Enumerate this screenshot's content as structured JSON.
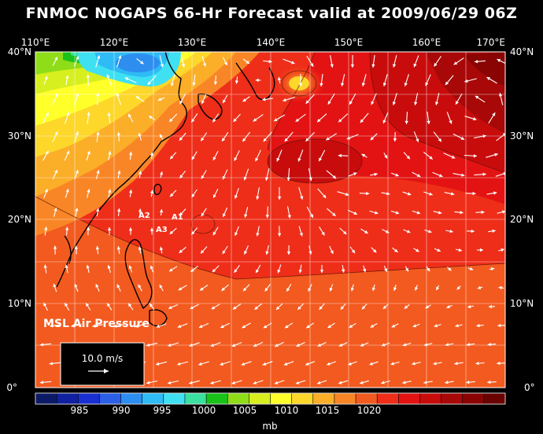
{
  "title": "FNMOC NOGAPS 66-Hr Forecast valid at 2009/06/29 06Z",
  "lon_labels": [
    "110°E",
    "120°E",
    "130°E",
    "140°E",
    "150°E",
    "160°E",
    "170°E"
  ],
  "lat_labels": [
    "40°N",
    "30°N",
    "20°N",
    "10°N",
    "0°"
  ],
  "field_label": "MSL Air Pressure",
  "vector_reference": "10.0 m/s",
  "storm_markers": [
    "A1",
    "A2",
    "A3"
  ],
  "colorbar": {
    "tick_labels": [
      "985",
      "990",
      "995",
      "1000",
      "1005",
      "1010",
      "1015",
      "1020"
    ],
    "unit": "mb",
    "colors": [
      "#0c1a66",
      "#1020a0",
      "#1a2fd2",
      "#2a5fe6",
      "#2d8ef0",
      "#2fbbf5",
      "#3fe0f2",
      "#3ae0a0",
      "#19c219",
      "#8fdc18",
      "#d7ef1e",
      "#ffff2a",
      "#fdd72a",
      "#fbae28",
      "#f98626",
      "#f35a1f",
      "#ee2e19",
      "#e31313",
      "#c80c0c",
      "#a80808",
      "#8a0404",
      "#6a0202"
    ]
  },
  "legend_colors": {
    "ocean_main": "#ee2e19",
    "vectors": "#ffffff",
    "coast": "#000000"
  }
}
